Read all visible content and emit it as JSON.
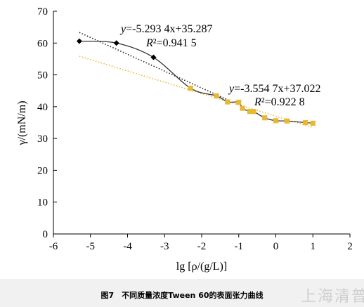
{
  "caption": "图7　不同质量浓度Tween 60的表面张力曲线",
  "watermark": "上海清普",
  "chart_data": {
    "type": "scatter",
    "xlabel": "lg [ρ/(g/L)]",
    "ylabel": "γ/(mN/m)",
    "xlim": [
      -6,
      2
    ],
    "ylim": [
      0,
      70
    ],
    "xticks": [
      "-6",
      "-5",
      "-4",
      "-3",
      "-2",
      "-1",
      "0",
      "1",
      "2"
    ],
    "yticks": [
      "0",
      "10",
      "20",
      "30",
      "40",
      "50",
      "60",
      "70"
    ],
    "grid": false,
    "series": [
      {
        "color": "#000000",
        "marker": "diamond",
        "x": [
          -5.3,
          -4.3,
          -3.3
        ],
        "y": [
          60.6,
          60.0,
          55.5
        ]
      },
      {
        "color": "#e8b830",
        "marker": "square",
        "x": [
          -2.3,
          -1.6,
          -1.3,
          -1.0,
          -0.9,
          -0.7,
          -0.6,
          -0.3,
          0.0,
          0.3,
          0.8,
          1.0
        ],
        "y": [
          45.8,
          43.4,
          41.5,
          41.4,
          39.5,
          38.5,
          38.5,
          36.5,
          35.6,
          35.5,
          35.0,
          34.8
        ]
      }
    ],
    "smooth_curve": {
      "color": "#333333",
      "x": [
        -5.3,
        -4.3,
        -3.3,
        -2.3,
        -1.6,
        -1.3,
        -1.0,
        -0.9,
        -0.7,
        -0.6,
        -0.3,
        0.0,
        0.3,
        0.8,
        1.0
      ],
      "y": [
        60.6,
        60.0,
        55.5,
        45.8,
        43.4,
        41.5,
        41.4,
        39.5,
        38.5,
        38.5,
        36.5,
        35.6,
        35.5,
        35.0,
        34.8
      ]
    },
    "trendlines": [
      {
        "color": "#222222",
        "slope": -5.2934,
        "intercept": 35.287,
        "x_range": [
          -5.3,
          -1.3
        ],
        "equation": "y=-5.293 4x+35.287",
        "r2_label": "R²=0.941 5"
      },
      {
        "color": "#e8b830",
        "slope": -3.5547,
        "intercept": 37.022,
        "x_range": [
          -5.3,
          1.0
        ],
        "equation": "y=-3.554 7x+37.022",
        "r2_label": "R²=0.922 8"
      }
    ]
  }
}
